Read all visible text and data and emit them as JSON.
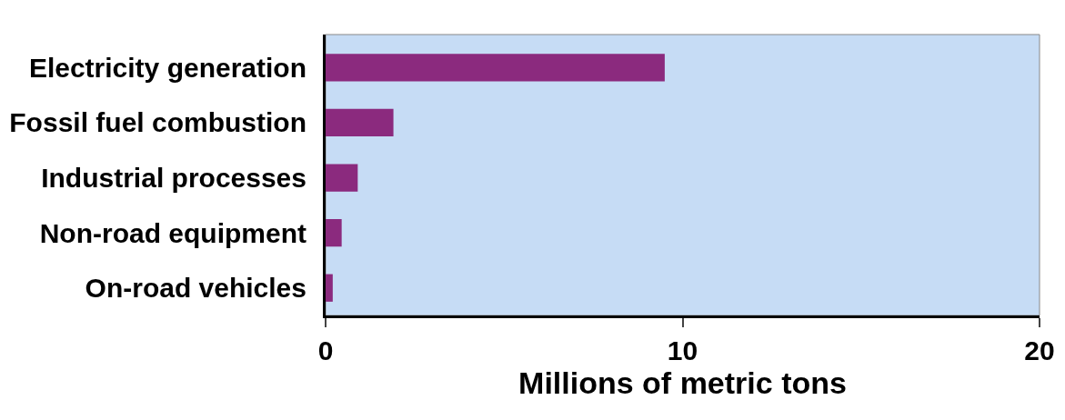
{
  "chart_data": {
    "type": "bar",
    "orientation": "horizontal",
    "xlabel": "Millions of metric tons",
    "categories": [
      "Electricity generation",
      "Fossil fuel combustion",
      "Industrial processes",
      "Non-road equipment",
      "On-road vehicles"
    ],
    "values": [
      9.5,
      1.9,
      0.9,
      0.45,
      0.2
    ],
    "color": "#8b2a7e",
    "xlim": [
      0,
      20
    ],
    "xticks": [
      0,
      10,
      20
    ]
  }
}
